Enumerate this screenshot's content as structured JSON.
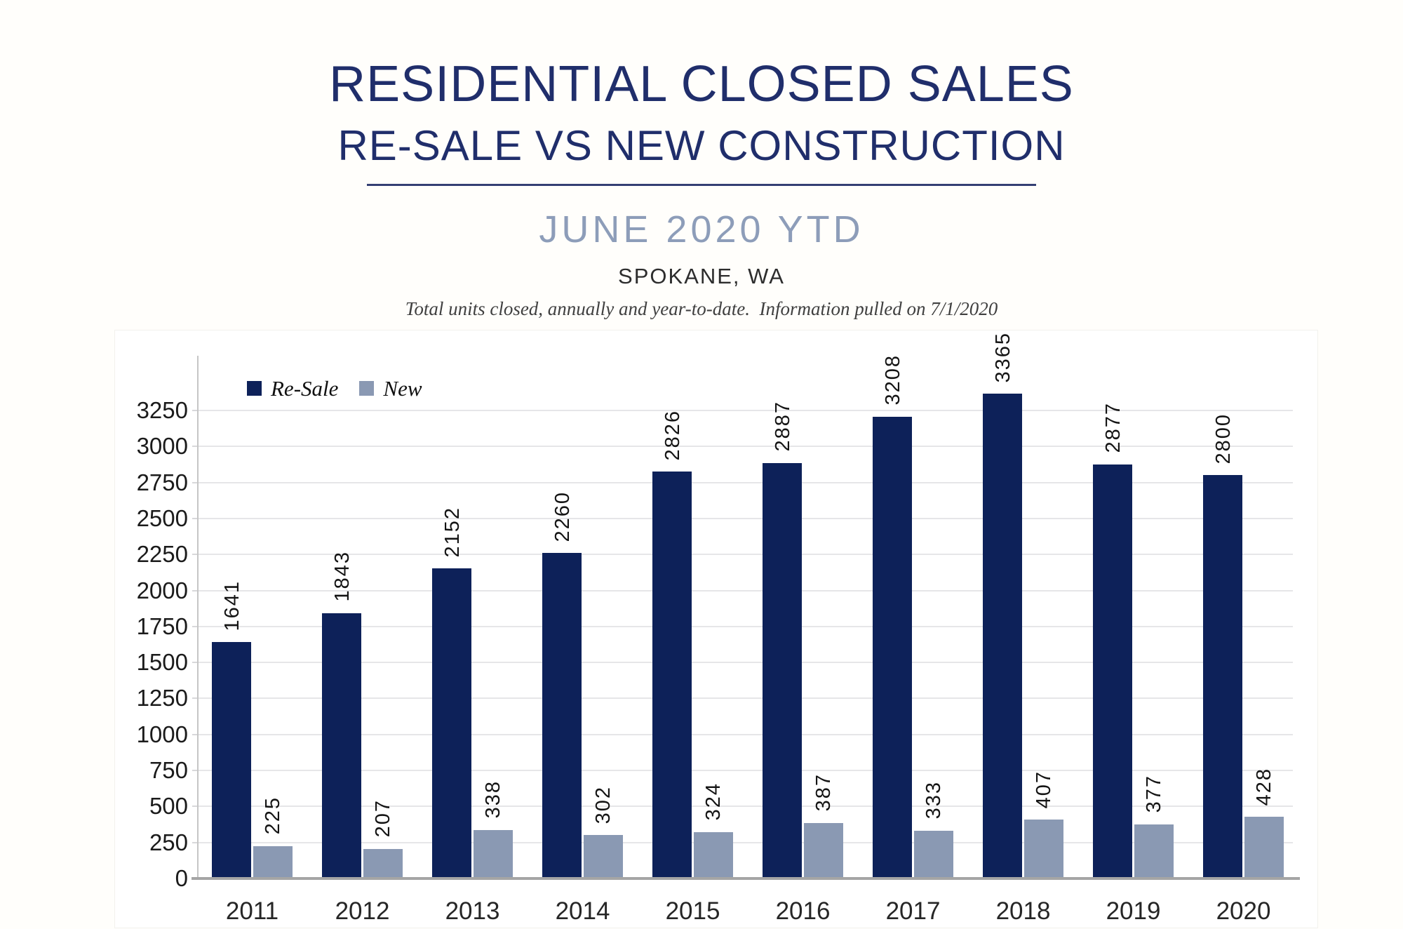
{
  "header": {
    "title_line1": "RESIDENTIAL CLOSED SALES",
    "title_line2": "RE-SALE VS NEW CONSTRUCTION",
    "period": "JUNE 2020 YTD",
    "location": "SPOKANE, WA",
    "note": "Total units closed, annually and year-to-date.  Information pulled on 7/1/2020"
  },
  "colors": {
    "title_navy": "#202e6b",
    "period_blue": "#8d9db9",
    "resale_bar": "#0d2159",
    "new_bar": "#8a99b3",
    "gridline": "#e6e6e8",
    "axis_line": "#c6c6c6",
    "baseline": "#a5a5a5"
  },
  "chart_data": {
    "type": "bar",
    "title": "RESIDENTIAL CLOSED SALES — RE-SALE VS NEW CONSTRUCTION, JUNE 2020 YTD, SPOKANE, WA",
    "categories": [
      "2011",
      "2012",
      "2013",
      "2014",
      "2015",
      "2016",
      "2017",
      "2018",
      "2019",
      "2020"
    ],
    "series": [
      {
        "name": "Re-Sale",
        "color": "#0d2159",
        "values": [
          1641,
          1843,
          2152,
          2260,
          2826,
          2887,
          3208,
          3365,
          2877,
          2800
        ]
      },
      {
        "name": "New",
        "color": "#8a99b3",
        "values": [
          225,
          207,
          338,
          302,
          324,
          387,
          333,
          407,
          377,
          428
        ]
      }
    ],
    "xlabel": "",
    "ylabel": "",
    "ylim": [
      0,
      3250
    ],
    "ytick_step": 250,
    "yticks": [
      0,
      250,
      500,
      750,
      1000,
      1250,
      1500,
      1750,
      2000,
      2250,
      2500,
      2750,
      3000,
      3250
    ],
    "grid": true,
    "legend_position": "top-left",
    "bar_value_labels_rotated": true
  }
}
